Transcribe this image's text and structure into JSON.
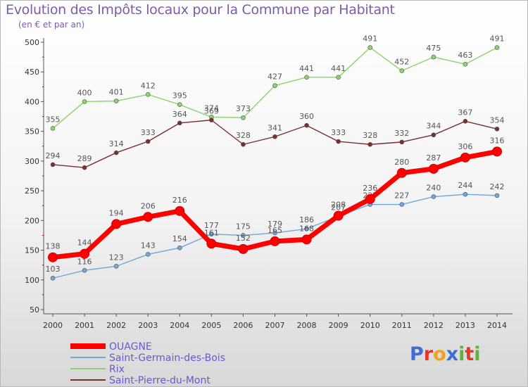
{
  "chart_data": {
    "type": "line",
    "title": "Evolution des Impôts locaux pour la Commune par Habitant",
    "subtitle": "(en € et par an)",
    "xlabel": "",
    "ylabel": "",
    "ylim": [
      50,
      500
    ],
    "yticks": [
      50,
      100,
      150,
      200,
      250,
      300,
      350,
      400,
      450,
      500
    ],
    "x": [
      "2000",
      "2001",
      "2002",
      "2003",
      "2004",
      "2005",
      "2006",
      "2007",
      "2008",
      "2009",
      "2010",
      "2011",
      "2012",
      "2013",
      "2014"
    ],
    "series": [
      {
        "name": "OUAGNE",
        "color": "#ff0000",
        "values": [
          138,
          144,
          194,
          206,
          216,
          161,
          152,
          165,
          168,
          208,
          236,
          280,
          287,
          306,
          316
        ]
      },
      {
        "name": "Saint-Germain-des-Bois",
        "color": "#6fa8dc",
        "values": [
          103,
          116,
          123,
          143,
          154,
          177,
          175,
          179,
          186,
          207,
          227,
          227,
          240,
          244,
          242
        ]
      },
      {
        "name": "Rix",
        "color": "#8cd36b",
        "values": [
          355,
          400,
          401,
          412,
          395,
          374,
          373,
          427,
          441,
          441,
          491,
          452,
          475,
          463,
          491
        ]
      },
      {
        "name": "Saint-Pierre-du-Mont",
        "color": "#7a2e2e",
        "values": [
          294,
          289,
          314,
          333,
          364,
          369,
          328,
          341,
          360,
          333,
          328,
          332,
          344,
          367,
          354
        ]
      }
    ],
    "grid": false,
    "legend_position": "bottom-left"
  },
  "logo": {
    "text": "Proxiti",
    "letters": [
      {
        "ch": "P",
        "color": "#3b6fd6"
      },
      {
        "ch": "r",
        "color": "#e0392b"
      },
      {
        "ch": "o",
        "color": "#f2a21b"
      },
      {
        "ch": "x",
        "color": "#3b6fd6"
      },
      {
        "ch": "i",
        "color": "#5cb43a"
      },
      {
        "ch": "t",
        "color": "#e0392b"
      },
      {
        "ch": "i",
        "color": "#5cb43a"
      }
    ]
  }
}
